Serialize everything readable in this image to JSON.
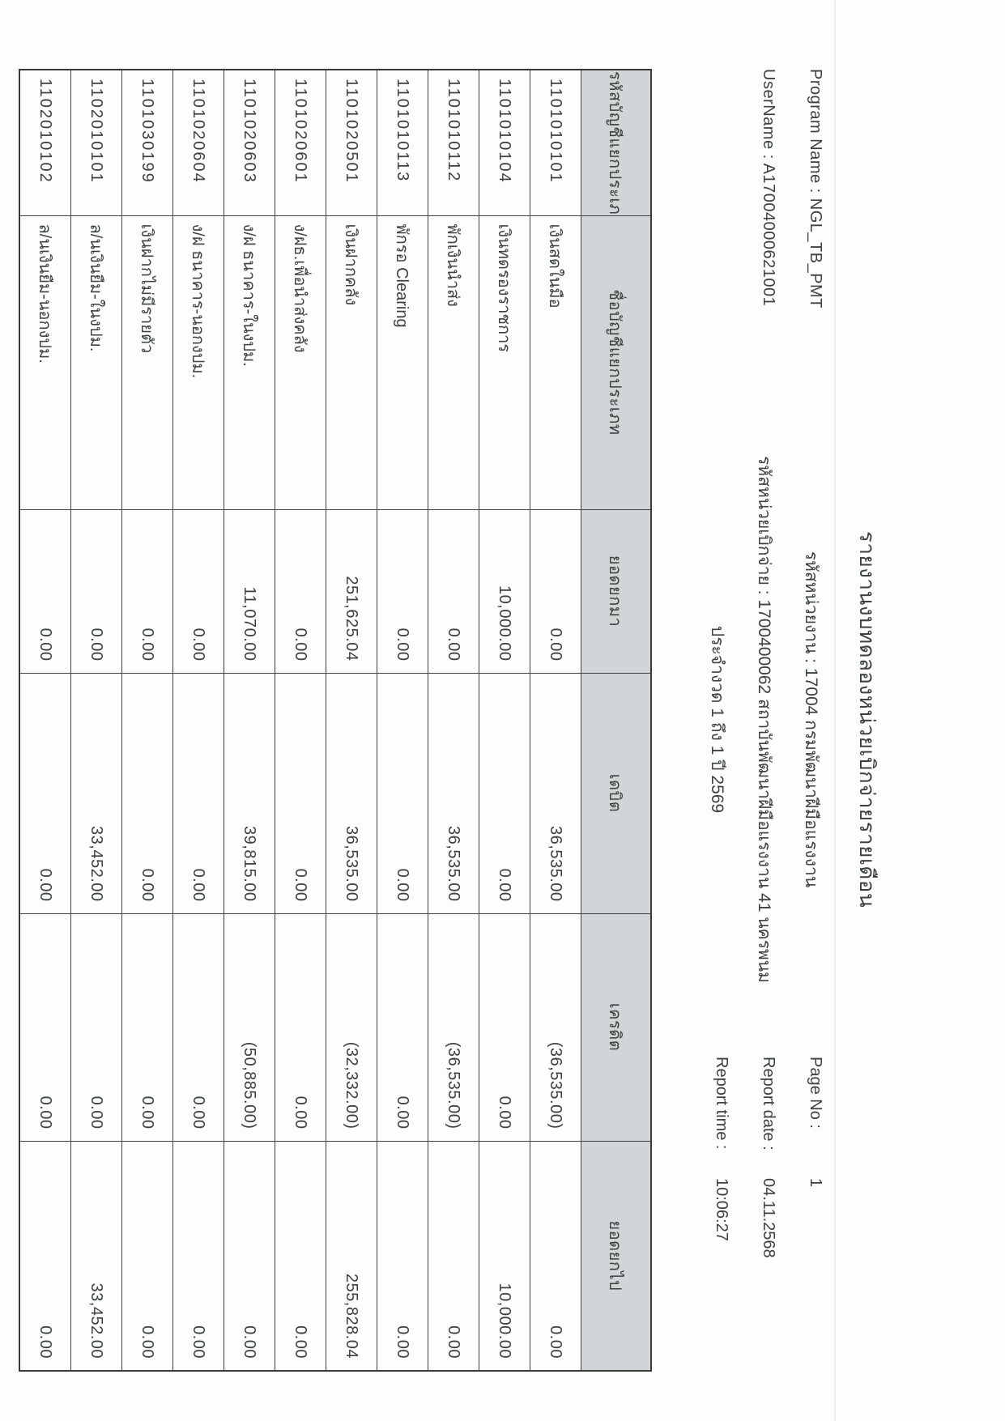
{
  "report": {
    "title": "รายงานงบทดลองหน่วยเบิกจ่ายรายเดือน",
    "program_name_label": "Program Name :",
    "program_name": "NGL_TB_PMT",
    "username_label": "UserName :",
    "username": "A17004000621001",
    "agency_line": "รหัสหน่วยงาน : 17004 กรมพัฒนาฝีมือแรงงาน",
    "payment_unit_line": "รหัสหน่วยเบิกจ่าย : 1700400062 สถาบันพัฒนาฝีมือแรงงาน 41 นครพนม",
    "period_line": "ประจำงวด 1 ถึง 1 ปี 2569",
    "page_no_label": "Page No :",
    "page_no": "1",
    "report_date_label": "Report date :",
    "report_date": "04.11.2568",
    "report_time_label": "Report time :",
    "report_time": "10:06:27"
  },
  "table": {
    "columns": [
      "รหัสบัญชีแยกประเภท",
      "ชื่อบัญชีแยกประเภท",
      "ยอดยกมา",
      "เดบิต",
      "เครดิต",
      "ยอดยกไป"
    ],
    "rows": [
      {
        "code": "1101010101",
        "name": "เงินสดในมือ",
        "opening": "0.00",
        "debit": "36,535.00",
        "credit": "(36,535.00)",
        "closing": "0.00"
      },
      {
        "code": "1101010104",
        "name": "เงินทดรองราชการ",
        "opening": "10,000.00",
        "debit": "0.00",
        "credit": "0.00",
        "closing": "10,000.00"
      },
      {
        "code": "1101010112",
        "name": "พักเงินนำส่ง",
        "opening": "0.00",
        "debit": "36,535.00",
        "credit": "(36,535.00)",
        "closing": "0.00"
      },
      {
        "code": "1101010113",
        "name": "พักรอ Clearing",
        "opening": "0.00",
        "debit": "0.00",
        "credit": "0.00",
        "closing": "0.00"
      },
      {
        "code": "1101020501",
        "name": "เงินฝากคลัง",
        "opening": "251,625.04",
        "debit": "36,535.00",
        "credit": "(32,332.00)",
        "closing": "255,828.04"
      },
      {
        "code": "1101020601",
        "name": "ง/ฝธ.เพื่อนำส่งคลัง",
        "opening": "0.00",
        "debit": "0.00",
        "credit": "0.00",
        "closing": "0.00"
      },
      {
        "code": "1101020603",
        "name": "ง/ฝ ธนาคาร-ในงปม.",
        "opening": "11,070.00",
        "debit": "39,815.00",
        "credit": "(50,885.00)",
        "closing": "0.00"
      },
      {
        "code": "1101020604",
        "name": "ง/ฝ ธนาคาร-นอกงปม.",
        "opening": "0.00",
        "debit": "0.00",
        "credit": "0.00",
        "closing": "0.00"
      },
      {
        "code": "1101030199",
        "name": "เงินฝากไม่มีรายตัว",
        "opening": "0.00",
        "debit": "0.00",
        "credit": "0.00",
        "closing": "0.00"
      },
      {
        "code": "1102010101",
        "name": "ล/นเงินยืม-ในงปม.",
        "opening": "0.00",
        "debit": "33,452.00",
        "credit": "0.00",
        "closing": "33,452.00"
      },
      {
        "code": "1102010102",
        "name": "ล/นเงินยืม-นอกงปม.",
        "opening": "0.00",
        "debit": "0.00",
        "credit": "0.00",
        "closing": "0.00"
      }
    ]
  },
  "colors": {
    "paper": "#fdfdfc",
    "header_fill": "#d2d5d8",
    "border": "#3d443e",
    "text": "#3a423c"
  }
}
